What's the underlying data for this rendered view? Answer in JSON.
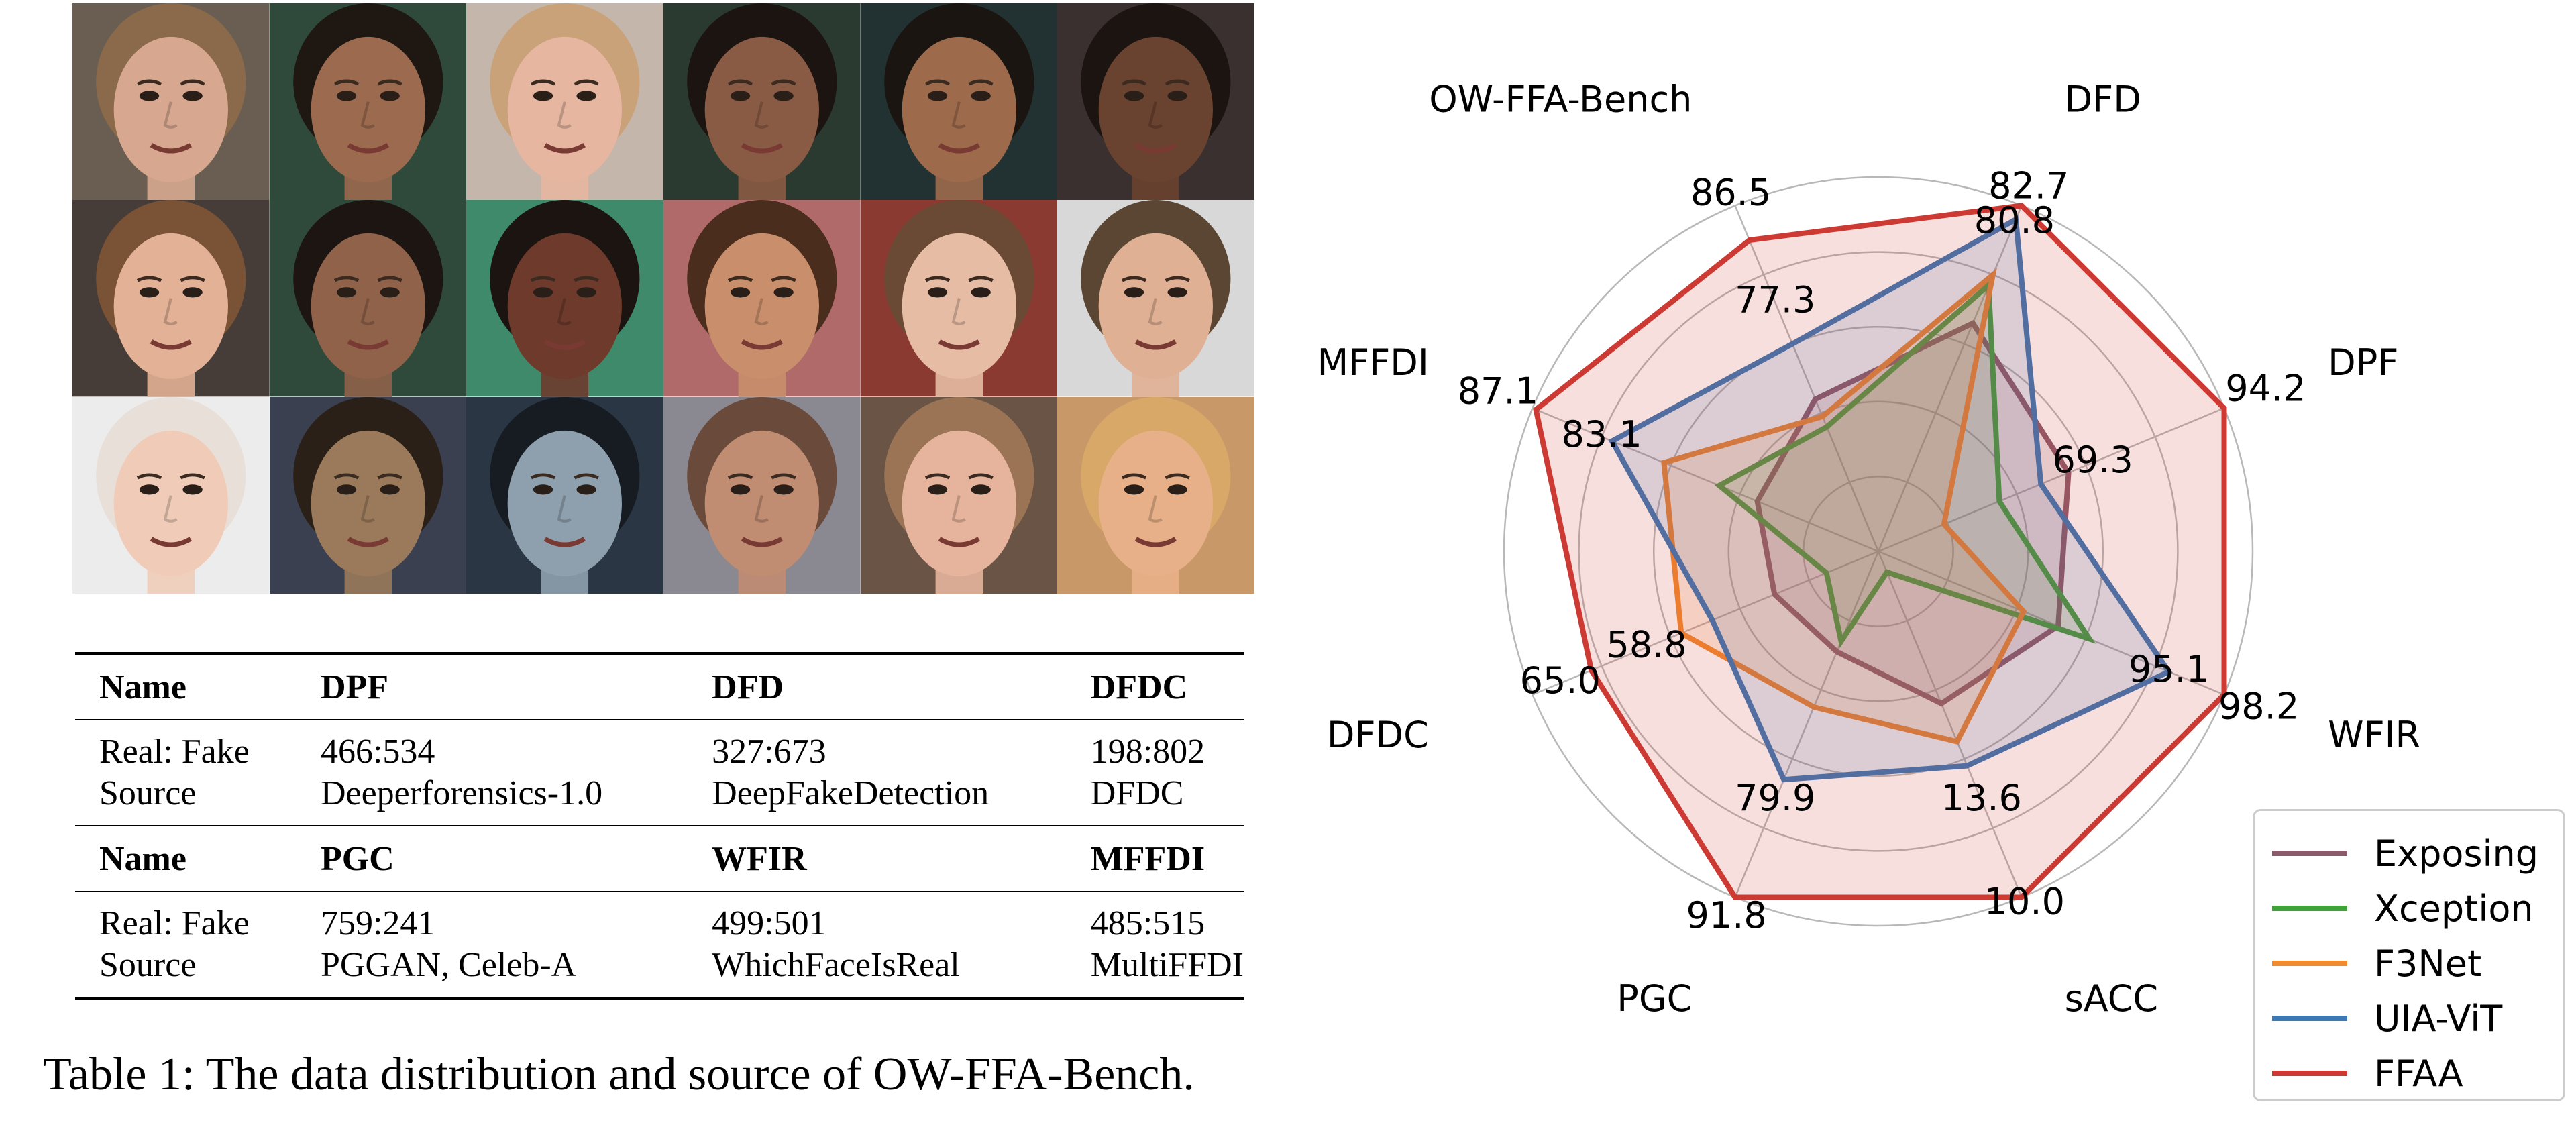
{
  "caption": "Table 1: The data distribution and source of OW-FFA-Bench.",
  "faces": [
    {
      "skin": "#d7a88f",
      "hair": "#8a6a4a",
      "bg": "#6a5e52"
    },
    {
      "skin": "#9b6a4f",
      "hair": "#1f1712",
      "bg": "#2f4a3a"
    },
    {
      "skin": "#e6b6a0",
      "hair": "#c9a27a",
      "bg": "#c4b6aa"
    },
    {
      "skin": "#8a5b44",
      "hair": "#1c1410",
      "bg": "#2b3a30"
    },
    {
      "skin": "#9d6a4c",
      "hair": "#1b1511",
      "bg": "#223232"
    },
    {
      "skin": "#6a4230",
      "hair": "#1c1410",
      "bg": "#3a3030"
    },
    {
      "skin": "#e2b196",
      "hair": "#7a5236",
      "bg": "#463c38"
    },
    {
      "skin": "#8f6249",
      "hair": "#1c1511",
      "bg": "#2f4a3a"
    },
    {
      "skin": "#6d3a2c",
      "hair": "#1c1410",
      "bg": "#3f8a6a"
    },
    {
      "skin": "#c98f6c",
      "hair": "#4a2d1d",
      "bg": "#b06a6a"
    },
    {
      "skin": "#e6bca4",
      "hair": "#6a4a34",
      "bg": "#8a3a30"
    },
    {
      "skin": "#e0b094",
      "hair": "#5a4632",
      "bg": "#d8d8d8"
    },
    {
      "skin": "#f0ccb8",
      "hair": "#e8e0d8",
      "bg": "#ececec"
    },
    {
      "skin": "#9a7a5a",
      "hair": "#2a2018",
      "bg": "#3a4050"
    },
    {
      "skin": "#8ea0ae",
      "hair": "#161c22",
      "bg": "#2a3644"
    },
    {
      "skin": "#c08c72",
      "hair": "#6a4a3a",
      "bg": "#8a8890"
    },
    {
      "skin": "#e6b49c",
      "hair": "#9a7454",
      "bg": "#6a5446"
    },
    {
      "skin": "#e8b088",
      "hair": "#d8a868",
      "bg": "#c89868"
    }
  ],
  "table": {
    "groups": [
      {
        "header": [
          "Name",
          "DPF",
          "DFD",
          "DFDC"
        ],
        "rows": [
          [
            "Real: Fake",
            "466:534",
            "327:673",
            "198:802"
          ],
          [
            "Source",
            "Deeperforensics-1.0",
            "DeepFakeDetection",
            "DFDC"
          ]
        ]
      },
      {
        "header": [
          "Name",
          "PGC",
          "WFIR",
          "MFFDI"
        ],
        "rows": [
          [
            "Real: Fake",
            "759:241",
            "499:501",
            "485:515"
          ],
          [
            "Source",
            "PGGAN, Celeb-A",
            "WhichFaceIsReal",
            "MultiFFDI"
          ]
        ]
      }
    ]
  },
  "chart_data": {
    "type": "radar",
    "axes": [
      "DFD",
      "DPF",
      "WFIR",
      "sACC",
      "PGC",
      "DFDC",
      "MFFDI",
      "OW-FFA-Bench"
    ],
    "grid": true,
    "legend_position": "bottom-right",
    "series": [
      {
        "name": "Exposing",
        "color": "#8c5b6b",
        "values": [
          0.66,
          0.55,
          0.52,
          0.44,
          0.29,
          0.3,
          0.35,
          0.44
        ]
      },
      {
        "name": "Xception",
        "color": "#3fa33a",
        "values": [
          0.77,
          0.35,
          0.61,
          0.06,
          0.26,
          0.15,
          0.46,
          0.36
        ]
      },
      {
        "name": "F3Net",
        "color": "#f28a2e",
        "values": [
          0.8,
          0.19,
          0.42,
          0.55,
          0.45,
          0.57,
          0.62,
          0.39
        ]
      },
      {
        "name": "UIA-ViT",
        "color": "#3b78b4",
        "values": [
          0.96,
          0.47,
          0.84,
          0.62,
          0.66,
          0.48,
          0.77,
          0.6
        ]
      },
      {
        "name": "FFAA",
        "color": "#cc3a33",
        "values": [
          1.0,
          1.0,
          1.0,
          1.0,
          1.0,
          0.83,
          0.99,
          0.9
        ]
      }
    ],
    "value_labels": [
      {
        "text": "82.7",
        "axis": 0,
        "r": 1.05
      },
      {
        "text": "80.8",
        "axis": 0,
        "r": 0.95
      },
      {
        "text": "94.2",
        "axis": 1,
        "r": 1.12
      },
      {
        "text": "69.3",
        "axis": 1,
        "r": 0.62
      },
      {
        "text": "98.2",
        "axis": 2,
        "r": 1.1
      },
      {
        "text": "95.1",
        "axis": 2,
        "r": 0.84
      },
      {
        "text": "10.0",
        "axis": 3,
        "r": 1.02
      },
      {
        "text": "13.6",
        "axis": 3,
        "r": 0.72
      },
      {
        "text": "91.8",
        "axis": 4,
        "r": 1.06
      },
      {
        "text": "79.9",
        "axis": 4,
        "r": 0.72
      },
      {
        "text": "65.0",
        "axis": 5,
        "r": 0.92
      },
      {
        "text": "58.8",
        "axis": 5,
        "r": 0.67
      },
      {
        "text": "87.1",
        "axis": 6,
        "r": 1.1
      },
      {
        "text": "83.1",
        "axis": 6,
        "r": 0.8
      },
      {
        "text": "86.5",
        "axis": 7,
        "r": 1.03
      },
      {
        "text": "77.3",
        "axis": 7,
        "r": 0.72
      }
    ]
  }
}
